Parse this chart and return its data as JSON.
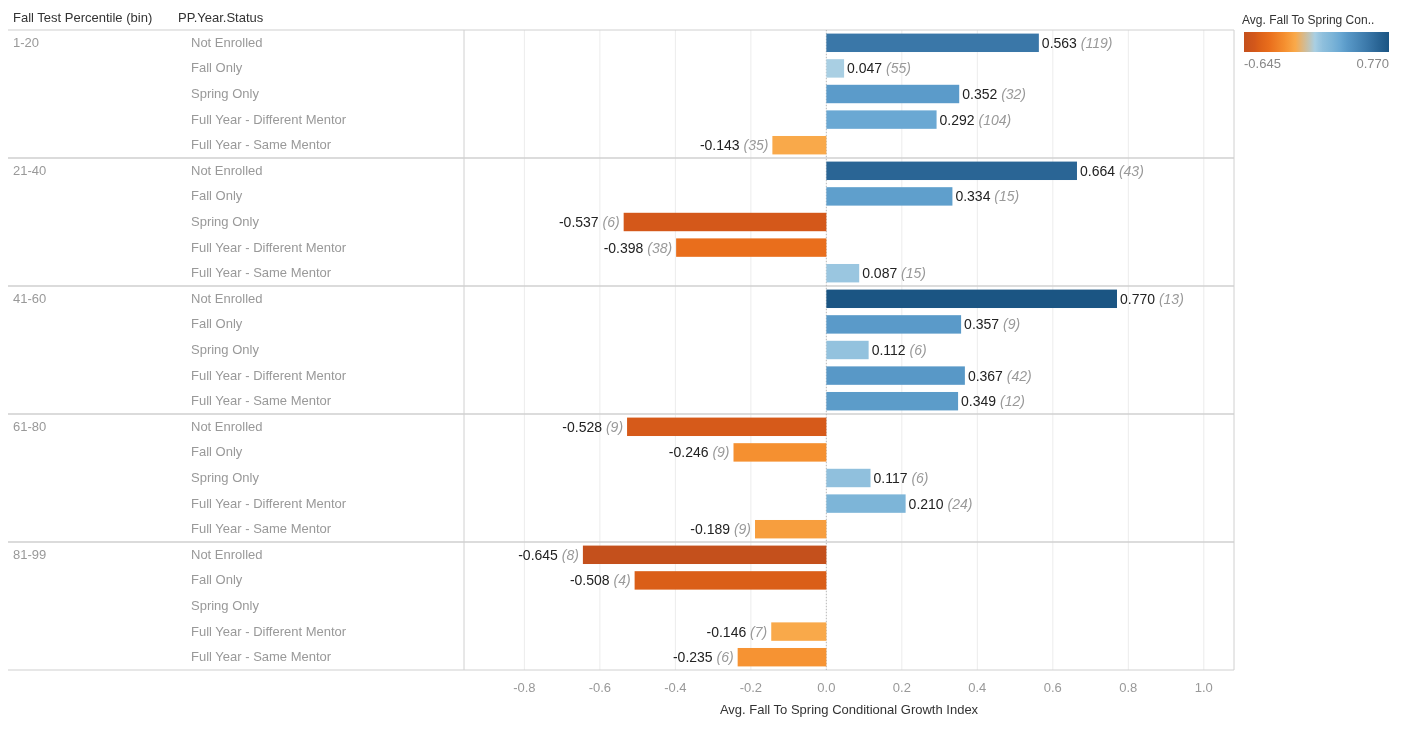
{
  "chart_data": {
    "type": "bar",
    "orientation": "horizontal",
    "ylabel": "PP.Year.Status",
    "xlabel": "Avg. Fall To Spring Conditional Growth Index",
    "clabel": "Avg. Fall To Spring Con..",
    "clim": [
      -0.645,
      0.77
    ],
    "cticks": [
      -0.645,
      {
        "value": 0.77,
        "label": "0.770"
      }
    ],
    "annotations": [
      "Fall Test Percentile (bin)",
      "1-20",
      "21-40",
      "41-60",
      "61-80",
      "81-99"
    ],
    "categories": [
      "Not Enrolled",
      "Fall Only",
      "Spring Only",
      "Full Year - Different Mentor",
      "Full Year - Same Mentor",
      "Not Enrolled",
      "Fall Only",
      "Spring Only",
      "Full Year - Different Mentor",
      "Full Year - Same Mentor",
      "Not Enrolled",
      "Fall Only",
      "Spring Only",
      "Full Year - Different Mentor",
      "Full Year - Same Mentor",
      "Not Enrolled",
      "Fall Only",
      "Spring Only",
      "Full Year - Different Mentor",
      "Full Year - Same Mentor",
      "Not Enrolled",
      "Fall Only",
      "Spring Only",
      "Full Year - Different Mentor",
      "Full Year - Same Mentor"
    ],
    "values": [
      0.563,
      0.047,
      0.352,
      0.292,
      -0.143,
      0.664,
      0.334,
      -0.537,
      -0.398,
      0.087,
      0.77,
      0.357,
      0.112,
      0.367,
      0.349,
      -0.528,
      -0.246,
      0.117,
      0.21,
      -0.189,
      -0.645,
      -0.508,
      null,
      -0.146,
      -0.235
    ],
    "value_labels": [
      "0.563 (119)",
      "0.047 (55)",
      "0.352 (32)",
      "0.292 (104)",
      "-0.143 (35)",
      "0.664 (43)",
      "0.334 (15)",
      "-0.537 (6)",
      "-0.398 (38)",
      "0.087 (15)",
      "0.770 (13)",
      "0.357 (9)",
      "0.112 (6)",
      "0.367 (42)",
      "0.349 (12)",
      "-0.528 (9)",
      "-0.246 (9)",
      "0.117 (6)",
      "0.210 (24)",
      "-0.189 (9)",
      "-0.645 (8)",
      "-0.508 (4)",
      null,
      "-0.146 (7)",
      "-0.235 (6)"
    ],
    "colors": [
      "#3a77a8",
      "#a9cfe3",
      "#5b9bca",
      "#6aa8d3",
      "#f9a94a",
      "#2a6595",
      "#5f9fcc",
      "#d4581a",
      "#e96e1c",
      "#9ac6e0",
      "#1b5583",
      "#5a9ac9",
      "#93c2de",
      "#5898c7",
      "#5c9cc9",
      "#d65a1a",
      "#f59030",
      "#90c0dd",
      "#7db5d8",
      "#f79e3e",
      "#c4501c",
      "#da5e18",
      null,
      "#f9a94a",
      "#f69333"
    ],
    "xlim": [
      -0.96,
      1.08
    ],
    "xticks": [
      -0.8,
      -0.6,
      -0.4,
      -0.2,
      {
        "value": 0,
        "label": "0.0"
      },
      0.2,
      0.4,
      0.6,
      0.8,
      {
        "value": 1,
        "label": "1.0"
      }
    ],
    "grid": "x",
    "ref_lines": [
      {
        "axis": "x",
        "value": 0,
        "line_style": "dotted",
        "color": "#bbbbbb"
      }
    ]
  }
}
